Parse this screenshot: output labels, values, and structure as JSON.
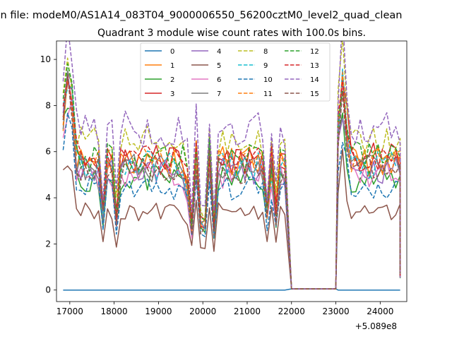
{
  "chart_data": {
    "type": "line",
    "suptitle": "n file: modeM0/AS1A14_083T04_9000006550_56200cztM0_level2_quad_clean",
    "title": "Quadrant 3 module wise count rates with 100.0s bins.",
    "xlabel": "",
    "ylabel": "",
    "x_offset_label": "+5.089e8",
    "xlim": [
      16700,
      24600
    ],
    "ylim": [
      -0.5,
      10.8
    ],
    "x_ticks": [
      17000,
      18000,
      19000,
      20000,
      21000,
      22000,
      23000,
      24000
    ],
    "x_tick_labels": [
      "17000",
      "18000",
      "19000",
      "20000",
      "21000",
      "22000",
      "23000",
      "24000"
    ],
    "y_ticks": [
      0,
      2,
      4,
      6,
      8,
      10
    ],
    "y_tick_labels": [
      "0",
      "2",
      "4",
      "6",
      "8",
      "10"
    ],
    "grid": false,
    "legend_position": "upper center",
    "gap": {
      "start": 22000,
      "end": 23000,
      "value": 0
    },
    "segments": [
      {
        "start": 16850,
        "end": 21850
      },
      {
        "start": 23050,
        "end": 24450
      }
    ],
    "series": [
      {
        "name": "0",
        "style": "solid",
        "color": "#1f77b4",
        "level": 0.0
      },
      {
        "name": "1",
        "style": "solid",
        "color": "#ff7f0e",
        "level": 5.6
      },
      {
        "name": "2",
        "style": "solid",
        "color": "#2ca02c",
        "level": 4.8
      },
      {
        "name": "3",
        "style": "solid",
        "color": "#d62728",
        "level": 5.7
      },
      {
        "name": "4",
        "style": "solid",
        "color": "#9467bd",
        "level": 5.2
      },
      {
        "name": "5",
        "style": "solid",
        "color": "#8c564b",
        "level": 3.4
      },
      {
        "name": "6",
        "style": "solid",
        "color": "#e377c2",
        "level": 5.0
      },
      {
        "name": "7",
        "style": "solid",
        "color": "#7f7f7f",
        "level": 5.3
      },
      {
        "name": "8",
        "style": "dashed",
        "color": "#bcbd22",
        "level": 6.4
      },
      {
        "name": "9",
        "style": "dashed",
        "color": "#17becf",
        "level": 5.4
      },
      {
        "name": "10",
        "style": "dashed",
        "color": "#1f77b4",
        "level": 4.4
      },
      {
        "name": "11",
        "style": "dashed",
        "color": "#ff7f0e",
        "level": 5.6
      },
      {
        "name": "12",
        "style": "dashed",
        "color": "#2ca02c",
        "level": 5.8
      },
      {
        "name": "13",
        "style": "dashed",
        "color": "#d62728",
        "level": 5.6
      },
      {
        "name": "14",
        "style": "dashed",
        "color": "#9467bd",
        "level": 7.0
      },
      {
        "name": "15",
        "style": "dashed",
        "color": "#8c564b",
        "level": 5.2
      }
    ]
  }
}
